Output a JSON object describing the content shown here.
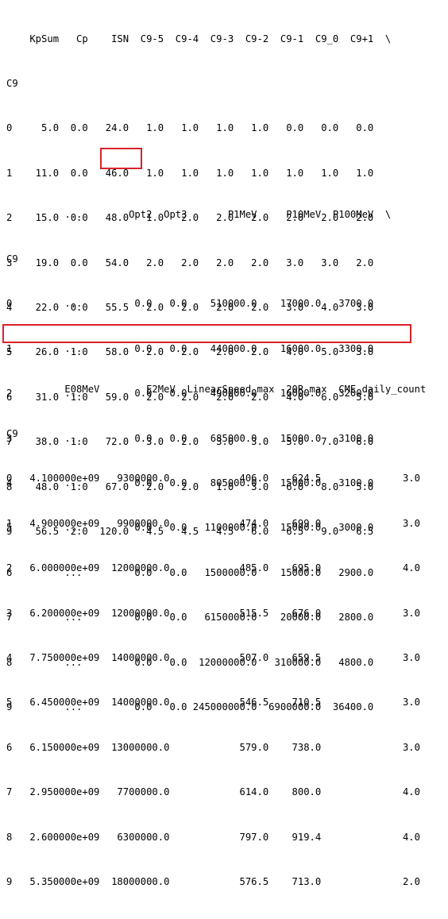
{
  "blocks": [
    {
      "header": "    KpSum   Cp    ISN  C9-5  C9-4  C9-3  C9-2  C9-1  C9_0  C9+1  \\",
      "index_name": "C9",
      "rows": [
        "0     5.0  0.0   24.0   1.0   1.0   1.0   1.0   0.0   0.0   0.0",
        "1    11.0  0.0   46.0   1.0   1.0   1.0   1.0   1.0   1.0   1.0",
        "2    15.0  0.0   48.0   1.0   2.0   2.0   2.0   2.0   2.0   2.0",
        "3    19.0  0.0   54.0   2.0   2.0   2.0   2.0   3.0   3.0   2.0",
        "4    22.0  0.0   55.5   2.0   2.0   2.0   2.0   3.0   4.0   3.0",
        "5    26.0  1.0   58.0   2.0   2.0   2.0   2.0   4.0   5.0   3.0",
        "6    31.0  1.0   59.0   2.0   2.0   2.0   2.0   4.0   6.0   5.0",
        "7    38.0  1.0   72.0   3.0   2.0   3.0   3.0   5.0   7.0   6.0",
        "8    48.0  1.0   67.0   2.0   2.0   1.0   3.0   6.0   8.0   5.0",
        "9    56.5  2.0  120.0   4.5   4.5   4.5   6.0   6.5   9.0   6.5"
      ]
    },
    {
      "header": "          ...        Opt2  Opt3       P1MeV     P10MeV  P100MeV  \\",
      "index_name": "C9",
      "rows": [
        "0         ...         0.0   0.0    510000.0    17000.0   3700.0",
        "1         ...         0.0   0.0    440000.0    16000.0   3300.0",
        "2         ...         0.0   0.0    490000.0    16000.0   3200.0",
        "3         ...         0.0   0.0    685000.0    15000.0   3100.0",
        "4         ...         0.0   0.0    805000.0    15000.0   3100.0",
        "5         ...         0.0   0.0   1100000.0    15000.0   3000.0",
        "6         ...         0.0   0.0   1500000.0    15000.0   2900.0",
        "7         ...         0.0   0.0   6150000.0    20000.0   2800.0",
        "8         ...         0.0   0.0  12000000.0   310000.0   4800.0",
        "9         ...         0.0   0.0 245000000.0  6900000.0  36400.0"
      ]
    },
    {
      "header": "          E08MeV        E2MeV  LinearSpeed_max  20R_max  CME_daily_count",
      "index_name": "C9",
      "rows": [
        "0   4.100000e+09   9300000.0            406.0    624.5              3.0",
        "1   4.900000e+09   9900000.0            474.0    699.0              3.0",
        "2   6.000000e+09  12000000.0            485.0    695.0              4.0",
        "3   6.200000e+09  12000000.0            515.5    676.0              3.0",
        "4   7.750000e+09  14000000.0            507.0    659.5              3.0",
        "5   6.450000e+09  14000000.0            546.5    710.5              3.0",
        "6   6.150000e+09  13000000.0            579.0    738.0              3.0",
        "7   2.950000e+09   7700000.0            614.0    800.0              4.0",
        "8   2.600000e+09   6300000.0            797.0    919.4              4.0",
        "9   5.350000e+09  18000000.0            576.5    713.0              2.0"
      ]
    }
  ],
  "highlights": {
    "color": "#d9222a",
    "isn_cell_value": "120.0",
    "row_label": "9"
  }
}
